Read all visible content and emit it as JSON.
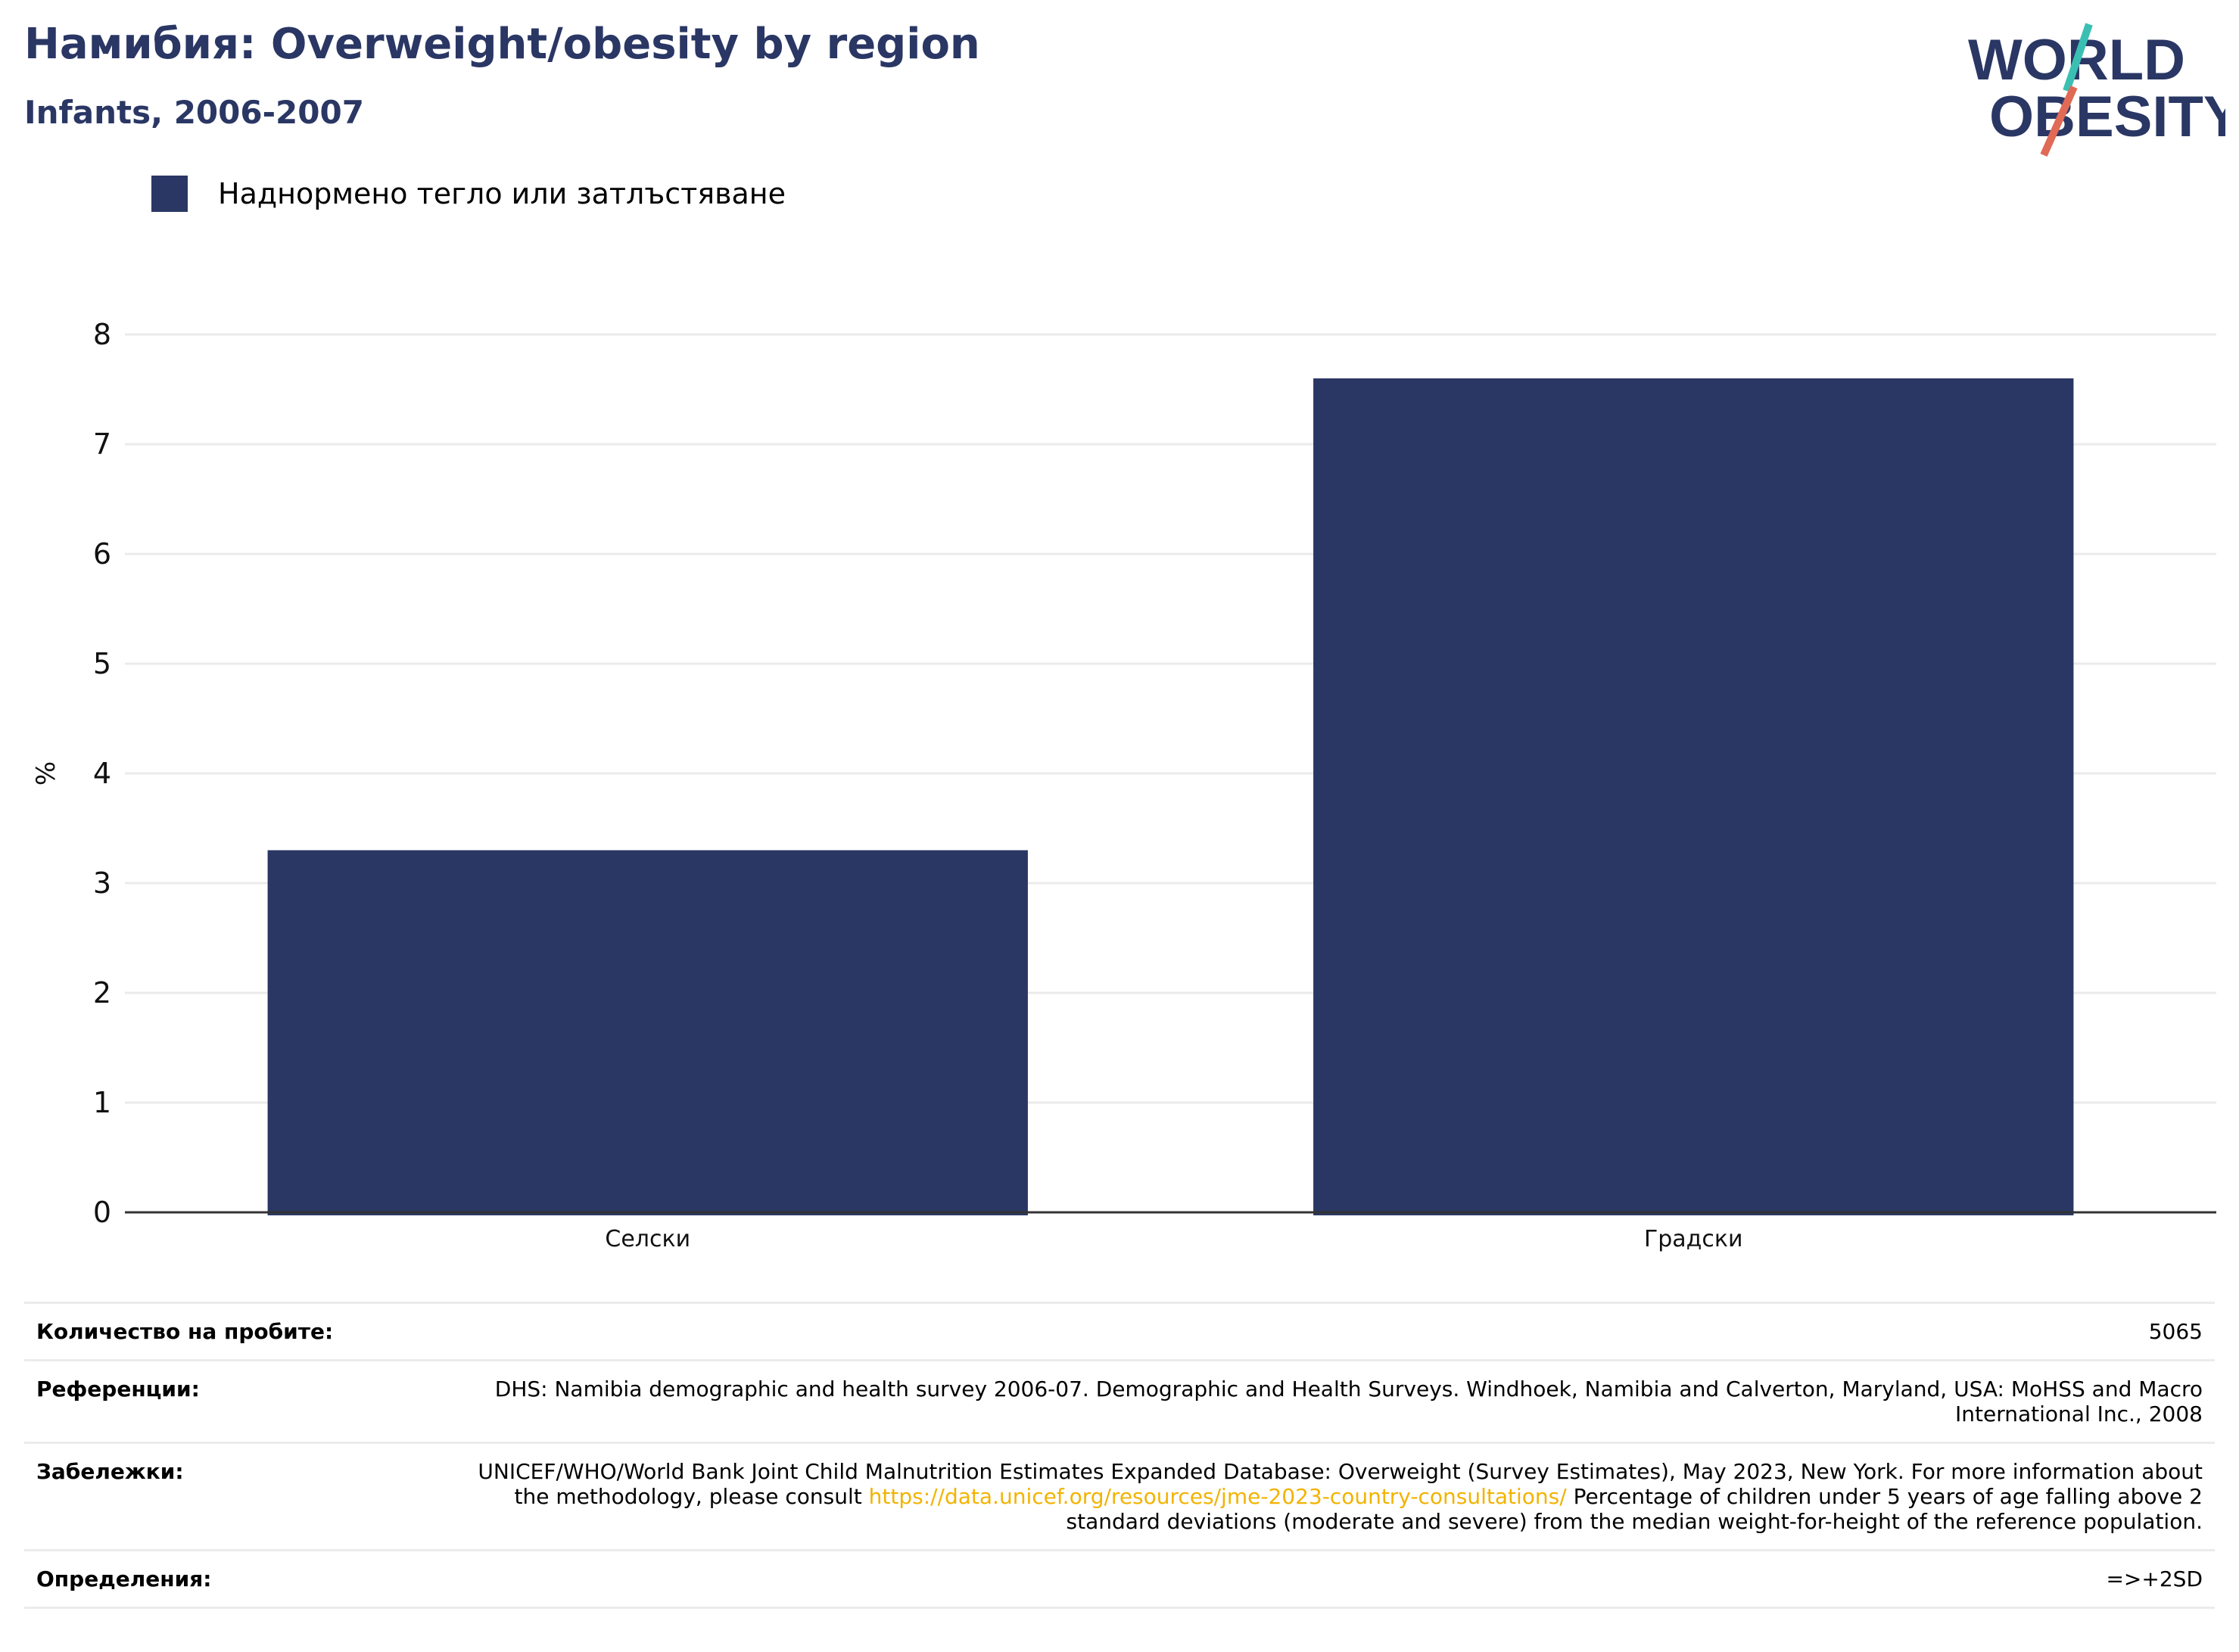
{
  "header": {
    "title": "Намибия: Overweight/obesity by region",
    "subtitle": "Infants, 2006-2007"
  },
  "logo": {
    "line1": "WORLD",
    "line2": "OBESITY",
    "icon": "world-obesity-logo"
  },
  "colors": {
    "bar": "#2a3764",
    "title": "#2a3764",
    "link": "#f2b300",
    "grid": "#ebebeb",
    "logo_teal": "#3bbfb3",
    "logo_coral": "#e06a55"
  },
  "chart_data": {
    "type": "bar",
    "categories": [
      "Селски",
      "Градски"
    ],
    "series": [
      {
        "name": "Наднормено тегло или затлъстяване",
        "values": [
          3.3,
          7.6
        ]
      }
    ],
    "ylabel": "%",
    "xlabel": "",
    "ylim": [
      0,
      8
    ],
    "yticks": [
      0,
      1,
      2,
      3,
      4,
      5,
      6,
      7,
      8
    ],
    "grid": true,
    "legend": "top-left"
  },
  "meta": {
    "sample_label": "Количество на пробите:",
    "sample_value": "5065",
    "refs_label": "Референции:",
    "refs_value": "DHS: Namibia demographic and health survey 2006-07. Demographic and Health Surveys. Windhoek, Namibia and Calverton, Maryland, USA: MoHSS and Macro International Inc., 2008",
    "notes_label": "Забележки:",
    "notes_pre": "UNICEF/WHO/World Bank Joint Child Malnutrition Estimates Expanded Database: Overweight (Survey Estimates), May 2023, New York. For more information about the methodology, please consult ",
    "notes_link": "https://data.unicef.org/resources/jme-2023-country-consultations/",
    "notes_post": " Percentage of children under 5 years of age falling above 2 standard deviations (moderate and severe) from the median weight-for-height of the reference population.",
    "defs_label": "Определения:",
    "defs_value": "=>+2SD"
  }
}
